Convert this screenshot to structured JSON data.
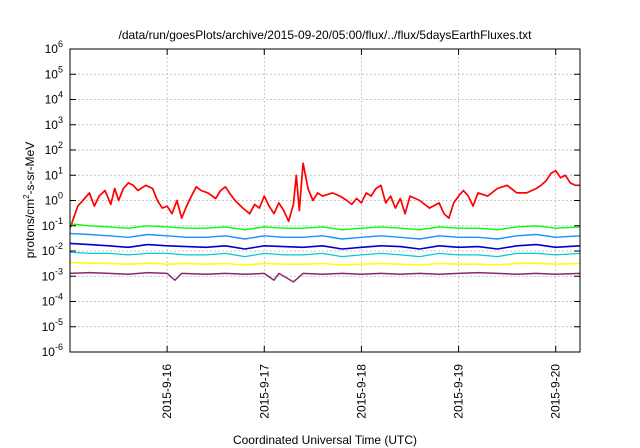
{
  "chart_data": {
    "type": "line",
    "title": "/data/run/goesPlots/archive/2015-09-20/05:00/flux/../flux/5daysEarthFluxes.txt",
    "xlabel": "Coordinated Universal Time (UTC)",
    "ylabel": {
      "prefix": "protons/cm",
      "superscript": "2",
      "suffix": "-s-sr-MeV"
    },
    "scale_y": "log",
    "ylim": [
      1e-06,
      1000000.0
    ],
    "xlim": [
      0,
      5.25
    ],
    "y_ticks": [
      {
        "value": 1e-06,
        "base": "10",
        "exp": "-6"
      },
      {
        "value": 1e-05,
        "base": "10",
        "exp": "-5"
      },
      {
        "value": 0.0001,
        "base": "10",
        "exp": "-4"
      },
      {
        "value": 0.001,
        "base": "10",
        "exp": "-3"
      },
      {
        "value": 0.01,
        "base": "10",
        "exp": "-2"
      },
      {
        "value": 0.1,
        "base": "10",
        "exp": "-1"
      },
      {
        "value": 1,
        "base": "10",
        "exp": "0"
      },
      {
        "value": 10.0,
        "base": "10",
        "exp": "1"
      },
      {
        "value": 100.0,
        "base": "10",
        "exp": "2"
      },
      {
        "value": 1000.0,
        "base": "10",
        "exp": "3"
      },
      {
        "value": 10000.0,
        "base": "10",
        "exp": "4"
      },
      {
        "value": 100000.0,
        "base": "10",
        "exp": "5"
      },
      {
        "value": 1000000.0,
        "base": "10",
        "exp": "6"
      }
    ],
    "x_ticks": [
      {
        "value": 1,
        "label": "2015-9-16"
      },
      {
        "value": 2,
        "label": "2015-9-17"
      },
      {
        "value": 3,
        "label": "2015-9-18"
      },
      {
        "value": 4,
        "label": "2015-9-19"
      },
      {
        "value": 5,
        "label": "2015-9-20"
      }
    ],
    "grid": true,
    "series": [
      {
        "color": "#ff0000",
        "width": 1.7,
        "x": [
          0,
          0.08,
          0.15,
          0.2,
          0.25,
          0.3,
          0.36,
          0.42,
          0.46,
          0.5,
          0.55,
          0.6,
          0.65,
          0.7,
          0.78,
          0.85,
          0.9,
          0.95,
          1.0,
          1.05,
          1.1,
          1.15,
          1.2,
          1.25,
          1.3,
          1.35,
          1.42,
          1.5,
          1.55,
          1.6,
          1.65,
          1.7,
          1.78,
          1.85,
          1.9,
          1.95,
          2.0,
          2.05,
          2.1,
          2.15,
          2.2,
          2.25,
          2.3,
          2.33,
          2.36,
          2.4,
          2.45,
          2.5,
          2.55,
          2.6,
          2.7,
          2.78,
          2.85,
          2.9,
          2.95,
          3.0,
          3.05,
          3.1,
          3.15,
          3.2,
          3.25,
          3.3,
          3.35,
          3.4,
          3.45,
          3.5,
          3.6,
          3.7,
          3.8,
          3.85,
          3.9,
          3.95,
          4.0,
          4.05,
          4.1,
          4.15,
          4.2,
          4.3,
          4.4,
          4.5,
          4.6,
          4.7,
          4.8,
          4.85,
          4.9,
          4.95,
          5.0,
          5.05,
          5.1,
          5.15,
          5.2,
          5.25
        ],
        "y": [
          0.08,
          0.6,
          1.2,
          2.0,
          0.6,
          1.5,
          2.5,
          0.7,
          3.0,
          1.0,
          3.0,
          5.0,
          4.0,
          2.5,
          4.0,
          3.0,
          1.0,
          0.5,
          0.6,
          0.3,
          1.0,
          0.2,
          0.6,
          1.5,
          3.5,
          2.5,
          2.0,
          1.2,
          2.5,
          3.5,
          1.8,
          1.0,
          0.5,
          0.3,
          0.7,
          0.5,
          1.5,
          0.6,
          0.3,
          0.8,
          0.4,
          0.15,
          0.7,
          10.0,
          0.4,
          30.0,
          3.0,
          1.0,
          2.0,
          1.5,
          2.0,
          1.5,
          1.0,
          0.7,
          1.2,
          0.8,
          2.0,
          1.5,
          3.0,
          4.0,
          0.8,
          1.5,
          0.5,
          1.2,
          0.3,
          1.5,
          1.0,
          0.5,
          0.8,
          0.3,
          0.2,
          0.8,
          1.5,
          2.5,
          1.5,
          0.6,
          2.0,
          1.5,
          3.0,
          4.0,
          2.0,
          2.0,
          3.0,
          4.0,
          6.0,
          12.0,
          15.0,
          8.0,
          10.0,
          5.0,
          4.0,
          4.0
        ]
      },
      {
        "color": "#00ff00",
        "width": 1.4,
        "x": [
          0,
          0.2,
          0.4,
          0.6,
          0.8,
          1.0,
          1.2,
          1.4,
          1.6,
          1.8,
          2.0,
          2.2,
          2.4,
          2.6,
          2.8,
          3.0,
          3.2,
          3.4,
          3.6,
          3.8,
          4.0,
          4.2,
          4.4,
          4.6,
          4.8,
          5.0,
          5.25
        ],
        "y": [
          0.12,
          0.1,
          0.09,
          0.08,
          0.1,
          0.09,
          0.08,
          0.08,
          0.09,
          0.07,
          0.09,
          0.08,
          0.08,
          0.09,
          0.07,
          0.08,
          0.09,
          0.08,
          0.07,
          0.09,
          0.08,
          0.08,
          0.07,
          0.09,
          0.1,
          0.08,
          0.09
        ]
      },
      {
        "color": "#1e90ff",
        "width": 1.4,
        "x": [
          0,
          0.2,
          0.4,
          0.6,
          0.8,
          1.0,
          1.2,
          1.4,
          1.6,
          1.8,
          2.0,
          2.2,
          2.4,
          2.6,
          2.8,
          3.0,
          3.2,
          3.4,
          3.6,
          3.8,
          4.0,
          4.2,
          4.4,
          4.6,
          4.8,
          5.0,
          5.25
        ],
        "y": [
          0.05,
          0.045,
          0.04,
          0.035,
          0.045,
          0.04,
          0.035,
          0.035,
          0.04,
          0.03,
          0.04,
          0.035,
          0.035,
          0.04,
          0.03,
          0.035,
          0.04,
          0.035,
          0.03,
          0.04,
          0.035,
          0.035,
          0.03,
          0.04,
          0.045,
          0.035,
          0.04
        ]
      },
      {
        "color": "#0000cd",
        "width": 1.6,
        "x": [
          0,
          0.2,
          0.4,
          0.6,
          0.8,
          1.0,
          1.2,
          1.4,
          1.6,
          1.8,
          2.0,
          2.2,
          2.4,
          2.6,
          2.8,
          3.0,
          3.2,
          3.4,
          3.6,
          3.8,
          4.0,
          4.2,
          4.4,
          4.6,
          4.8,
          5.0,
          5.25
        ],
        "y": [
          0.02,
          0.018,
          0.016,
          0.014,
          0.018,
          0.016,
          0.015,
          0.014,
          0.016,
          0.012,
          0.016,
          0.015,
          0.014,
          0.016,
          0.012,
          0.014,
          0.016,
          0.015,
          0.012,
          0.016,
          0.014,
          0.015,
          0.012,
          0.016,
          0.018,
          0.014,
          0.016
        ]
      },
      {
        "color": "#00ced1",
        "width": 1.3,
        "x": [
          0,
          0.2,
          0.4,
          0.6,
          0.8,
          1.0,
          1.2,
          1.4,
          1.6,
          1.8,
          2.0,
          2.2,
          2.4,
          2.6,
          2.8,
          3.0,
          3.2,
          3.4,
          3.6,
          3.8,
          4.0,
          4.2,
          4.4,
          4.6,
          4.8,
          5.0,
          5.25
        ],
        "y": [
          0.009,
          0.008,
          0.008,
          0.007,
          0.008,
          0.008,
          0.007,
          0.007,
          0.008,
          0.006,
          0.008,
          0.007,
          0.007,
          0.008,
          0.006,
          0.007,
          0.008,
          0.007,
          0.006,
          0.008,
          0.007,
          0.007,
          0.006,
          0.008,
          0.008,
          0.007,
          0.008
        ]
      },
      {
        "color": "#ffff00",
        "width": 1.6,
        "x": [
          0,
          0.2,
          0.4,
          0.6,
          0.8,
          1.0,
          1.2,
          1.4,
          1.6,
          1.8,
          2.0,
          2.2,
          2.4,
          2.6,
          2.8,
          3.0,
          3.2,
          3.4,
          3.6,
          3.8,
          4.0,
          4.2,
          4.4,
          4.6,
          4.8,
          5.0,
          5.25
        ],
        "y": [
          0.0035,
          0.0033,
          0.0032,
          0.003,
          0.0033,
          0.003,
          0.0032,
          0.003,
          0.0032,
          0.0028,
          0.0032,
          0.003,
          0.003,
          0.0032,
          0.0028,
          0.003,
          0.0032,
          0.003,
          0.0028,
          0.0032,
          0.003,
          0.003,
          0.0028,
          0.0032,
          0.0033,
          0.003,
          0.0032
        ]
      },
      {
        "color": "#8b2a6b",
        "width": 1.5,
        "x": [
          0,
          0.2,
          0.4,
          0.6,
          0.8,
          1.0,
          1.08,
          1.15,
          1.4,
          1.6,
          1.8,
          2.0,
          2.1,
          2.15,
          2.3,
          2.4,
          2.6,
          2.8,
          3.0,
          3.2,
          3.4,
          3.6,
          3.8,
          4.0,
          4.2,
          4.4,
          4.6,
          4.8,
          5.0,
          5.25
        ],
        "y": [
          0.0013,
          0.0014,
          0.0013,
          0.0012,
          0.0014,
          0.0013,
          0.0007,
          0.0013,
          0.0012,
          0.0013,
          0.0012,
          0.0013,
          0.0007,
          0.0013,
          0.0006,
          0.0013,
          0.0012,
          0.0013,
          0.0012,
          0.0013,
          0.0012,
          0.0013,
          0.0012,
          0.0013,
          0.0014,
          0.0013,
          0.0012,
          0.0013,
          0.0012,
          0.0013
        ]
      }
    ]
  }
}
